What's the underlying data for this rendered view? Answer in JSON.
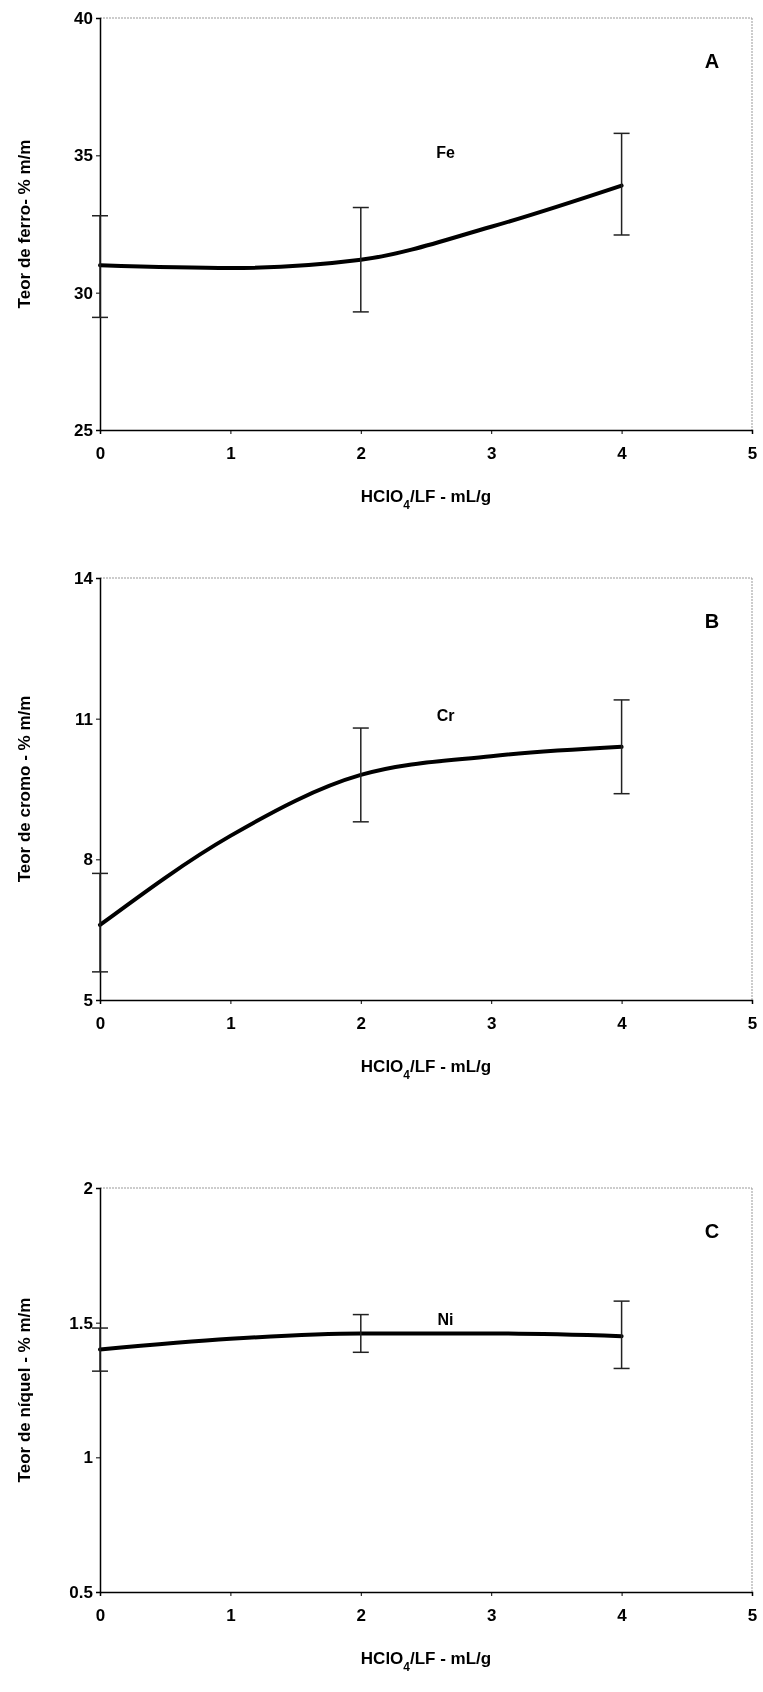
{
  "chart_data": [
    {
      "type": "line",
      "xlabel": "HClO$_{4}$/LF - mL/g",
      "ylabel": "Teor de ferro- % m/m",
      "annotations": [
        "A"
      ],
      "x": [
        0,
        1,
        2,
        3,
        4
      ],
      "xlim": [
        0,
        5
      ],
      "ylim": [
        25,
        40
      ],
      "xticks": [
        0,
        1,
        2,
        3,
        4,
        5
      ],
      "yticks": [
        25,
        30,
        35,
        40
      ],
      "marker": "none",
      "line_style": "solid",
      "series": [
        {
          "name": "Fe",
          "color": "#000000",
          "values": [
            31.0,
            30.9,
            31.2,
            32.4,
            33.9
          ],
          "errors": [
            [
              29.1,
              32.8
            ],
            null,
            [
              29.3,
              33.1
            ],
            null,
            [
              32.1,
              35.8
            ]
          ]
        }
      ]
    },
    {
      "type": "line",
      "xlabel": "HClO$_{4}$/LF - mL/g",
      "ylabel": "Teor de cromo - % m/m",
      "annotations": [
        "B"
      ],
      "x": [
        0,
        1,
        2,
        3,
        4
      ],
      "xlim": [
        0,
        5
      ],
      "ylim": [
        5,
        14
      ],
      "xticks": [
        0,
        1,
        2,
        3,
        4,
        5
      ],
      "yticks": [
        5,
        8,
        11,
        14
      ],
      "marker": "none",
      "line_style": "solid",
      "series": [
        {
          "name": "Cr",
          "color": "#000000",
          "values": [
            6.6,
            8.5,
            9.8,
            10.2,
            10.4
          ],
          "errors": [
            [
              5.6,
              7.7
            ],
            null,
            [
              8.8,
              10.8
            ],
            null,
            [
              9.4,
              11.4
            ]
          ]
        }
      ]
    },
    {
      "type": "line",
      "xlabel": "HClO$_{4}$/LF - mL/g",
      "ylabel": "Teor de níquel - % m/m",
      "annotations": [
        "C"
      ],
      "x": [
        0,
        1,
        2,
        3,
        4
      ],
      "xlim": [
        0,
        5
      ],
      "ylim": [
        0.5,
        2
      ],
      "xticks": [
        0,
        1,
        2,
        3,
        4,
        5
      ],
      "yticks": [
        0.5,
        1,
        1.5,
        2
      ],
      "marker": "none",
      "line_style": "solid",
      "series": [
        {
          "name": "Ni",
          "color": "#000000",
          "values": [
            1.4,
            1.44,
            1.46,
            1.46,
            1.45
          ],
          "errors": [
            [
              1.32,
              1.48
            ],
            null,
            [
              1.39,
              1.53
            ],
            null,
            [
              1.33,
              1.58
            ]
          ]
        }
      ]
    }
  ]
}
